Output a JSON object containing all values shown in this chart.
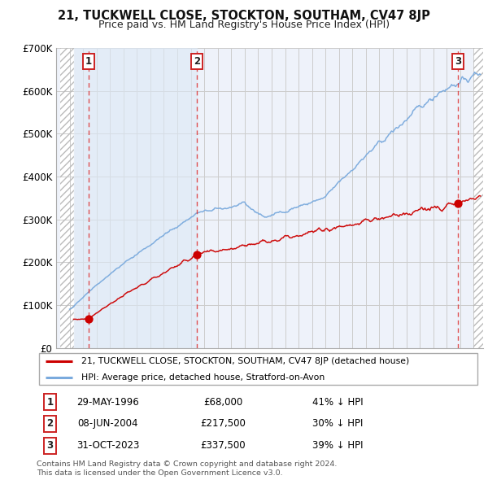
{
  "title": "21, TUCKWELL CLOSE, STOCKTON, SOUTHAM, CV47 8JP",
  "subtitle": "Price paid vs. HM Land Registry's House Price Index (HPI)",
  "ylim": [
    0,
    700000
  ],
  "yticks": [
    0,
    100000,
    200000,
    300000,
    400000,
    500000,
    600000,
    700000
  ],
  "ytick_labels": [
    "£0",
    "£100K",
    "£200K",
    "£300K",
    "£400K",
    "£500K",
    "£600K",
    "£700K"
  ],
  "xlim_start": 1994.3,
  "xlim_end": 2025.7,
  "sale_dates": [
    1996.41,
    2004.44,
    2023.83
  ],
  "sale_prices": [
    68000,
    217500,
    337500
  ],
  "sale_labels": [
    "1",
    "2",
    "3"
  ],
  "sale_color": "#cc0000",
  "hpi_line_color": "#7aaadd",
  "legend_label_red": "21, TUCKWELL CLOSE, STOCKTON, SOUTHAM, CV47 8JP (detached house)",
  "legend_label_blue": "HPI: Average price, detached house, Stratford-on-Avon",
  "table_rows": [
    [
      "1",
      "29-MAY-1996",
      "£68,000",
      "41% ↓ HPI"
    ],
    [
      "2",
      "08-JUN-2004",
      "£217,500",
      "30% ↓ HPI"
    ],
    [
      "3",
      "31-OCT-2023",
      "£337,500",
      "39% ↓ HPI"
    ]
  ],
  "footer": "Contains HM Land Registry data © Crown copyright and database right 2024.\nThis data is licensed under the Open Government Licence v3.0.",
  "grid_color": "#cccccc",
  "plot_bg": "#eef2fa",
  "hatch_shade_start": 1994.3,
  "hatch_shade_end1": 1995.3,
  "hatch_shade_start2": 2025.0,
  "hatch_shade_end2": 2025.7,
  "blue_shade_start": 1995.3,
  "blue_shade_end": 2004.44
}
